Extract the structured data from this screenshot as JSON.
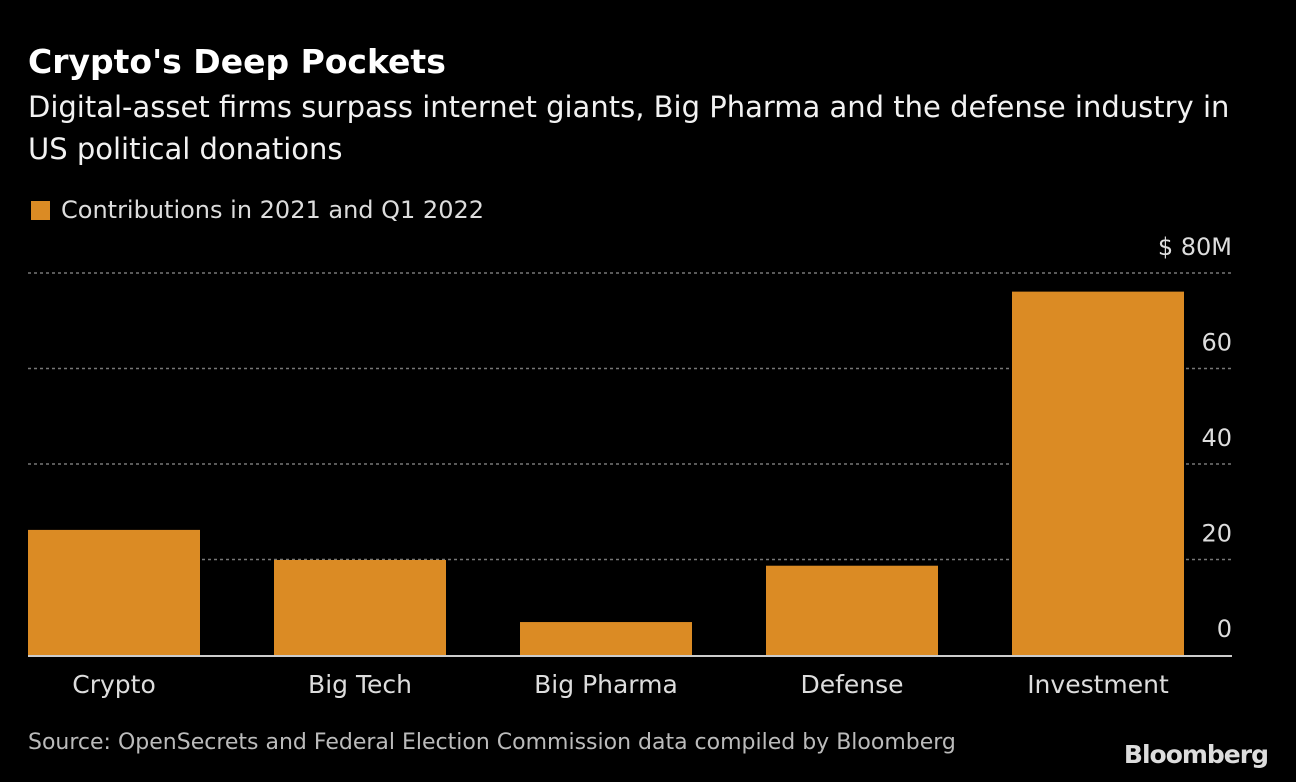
{
  "title": "Crypto's Deep Pockets",
  "subtitle": "Digital-asset firms surpass internet giants, Big Pharma and the defense industry in US political donations",
  "source": "Source: OpenSecrets and Federal Election Commission data compiled by Bloomberg",
  "logo": "Bloomberg",
  "chart_data": {
    "type": "bar",
    "title": "Crypto's Deep Pockets",
    "categories": [
      "Crypto",
      "Big Tech",
      "Big Pharma",
      "Defense",
      "Investment"
    ],
    "series": [
      {
        "name": "Contributions in 2021 and Q1 2022",
        "values": [
          26.2,
          19.9,
          6.9,
          18.7,
          76.1
        ],
        "color": "#db8b24"
      }
    ],
    "ylim": [
      0,
      80
    ],
    "yticks": [
      0,
      20,
      40,
      60,
      80
    ],
    "ytick_labels": [
      "0",
      "20",
      "40",
      "60",
      "$ 80M"
    ],
    "grid": true,
    "y_axis_side": "right",
    "legend_position": "top-left"
  }
}
